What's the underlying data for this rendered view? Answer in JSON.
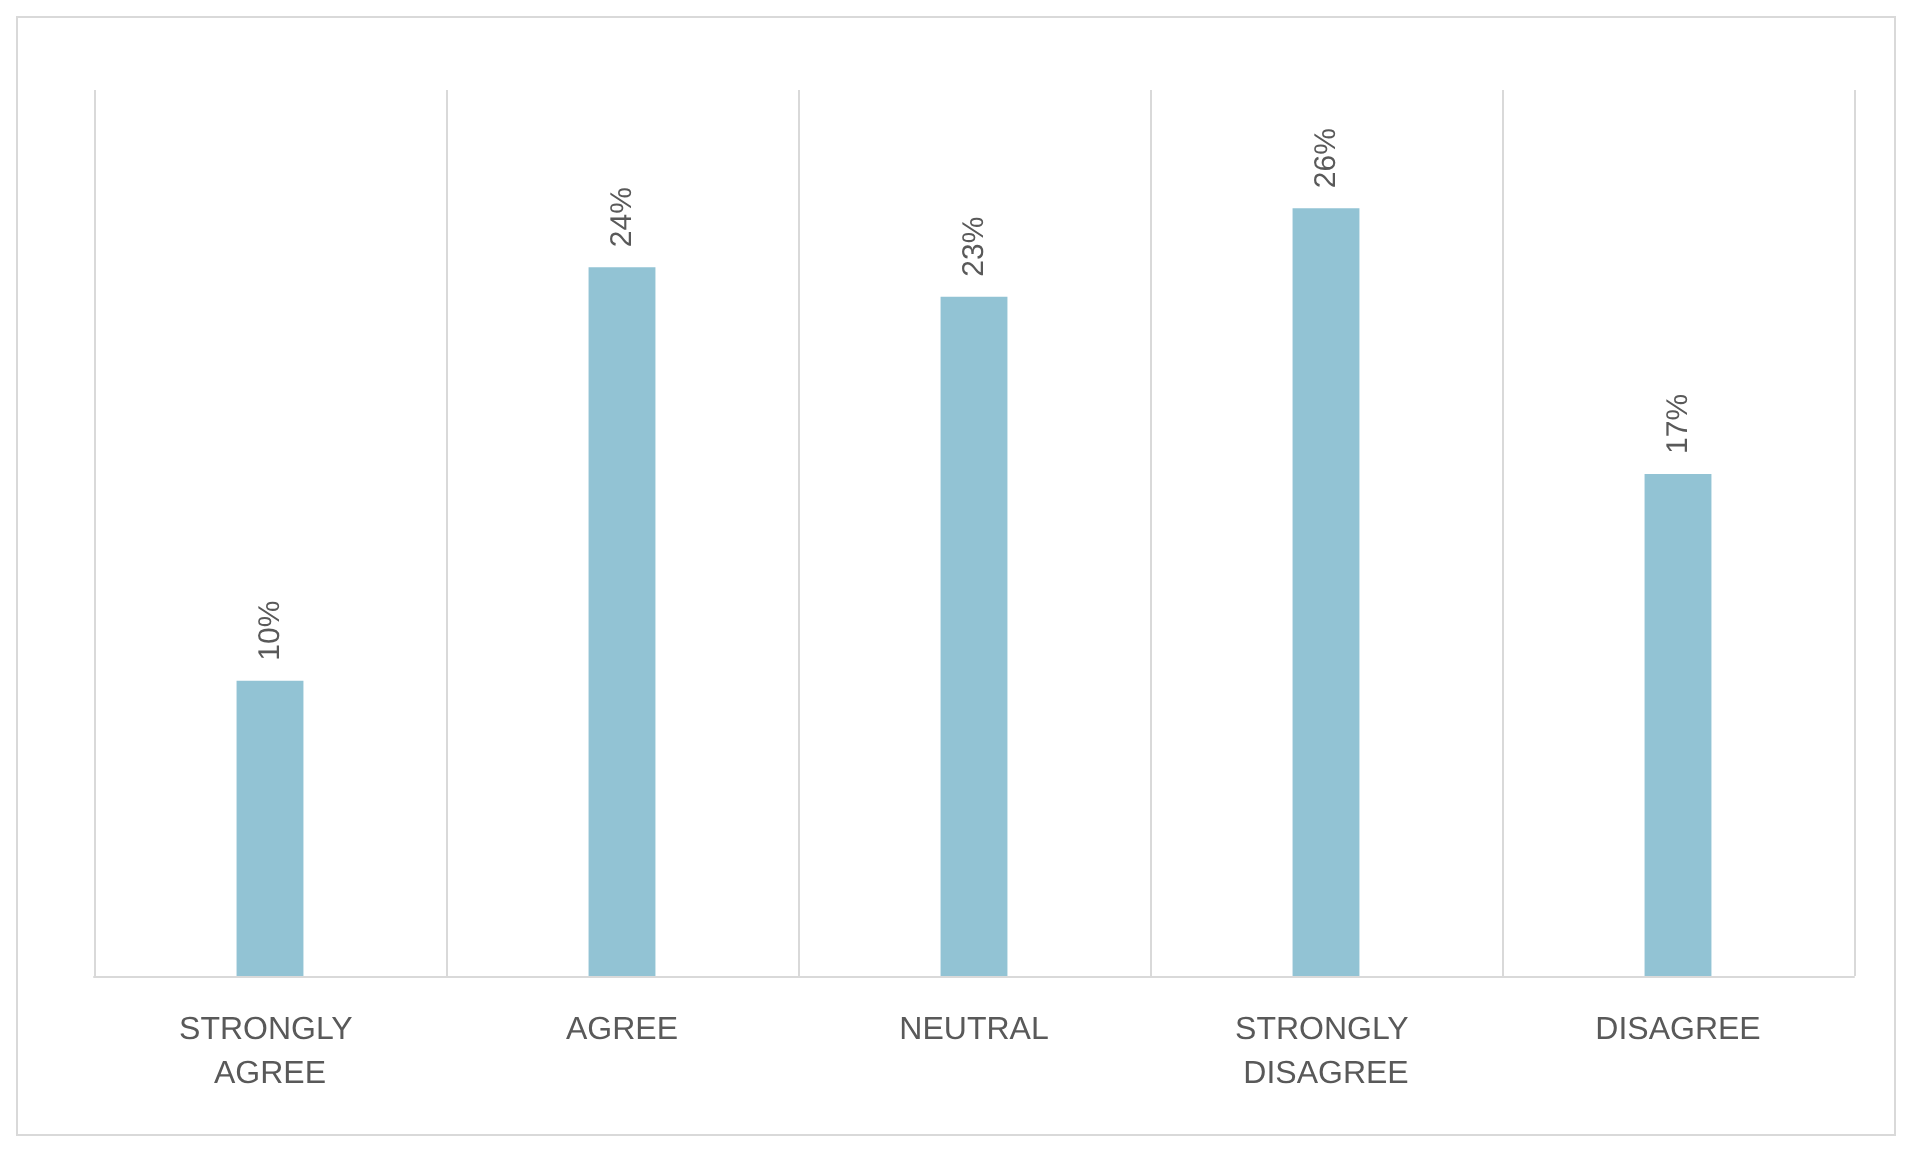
{
  "chart_data": {
    "type": "bar",
    "categories": [
      "STRONGLY AGREE",
      "AGREE",
      "NEUTRAL",
      "STRONGLY DISAGREE",
      "DISAGREE"
    ],
    "values": [
      10,
      24,
      23,
      26,
      17
    ],
    "value_labels": [
      "10%",
      "24%",
      "23%",
      "26%",
      "17%"
    ],
    "color": "#92c3d4",
    "grid": "x",
    "tick_labels": "x"
  }
}
